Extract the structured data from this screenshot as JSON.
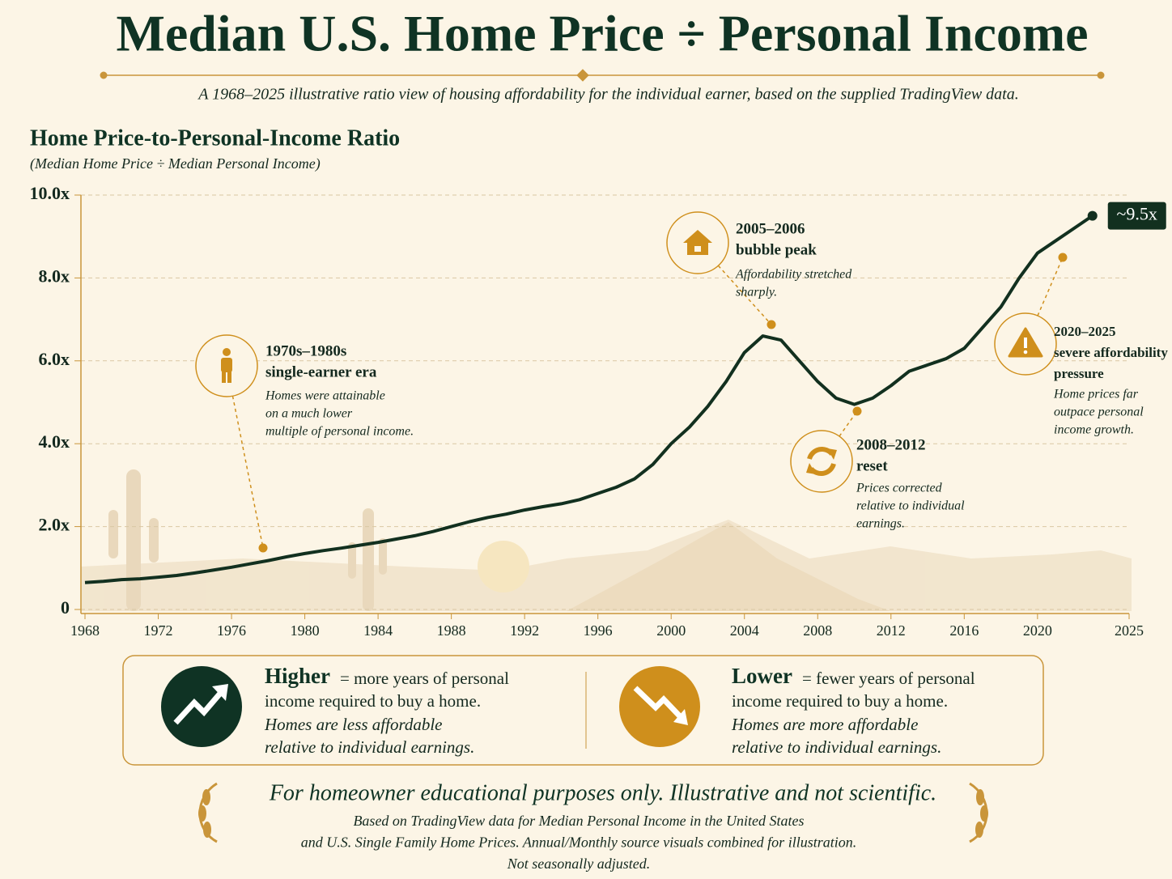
{
  "header": {
    "title": "Median U.S. Home Price ÷ Personal Income",
    "subtitle": "A 1968–2025 illustrative ratio view of  housing affordability for the individual earner, based on the supplied TradingView data."
  },
  "chart_data": {
    "type": "line",
    "title": "Home Price-to-Personal-Income Ratio",
    "subtitle": "(Median Home Price ÷ Median Personal Income)",
    "x": [
      1968,
      1969,
      1970,
      1971,
      1972,
      1973,
      1974,
      1975,
      1976,
      1977,
      1978,
      1979,
      1980,
      1981,
      1982,
      1983,
      1984,
      1985,
      1986,
      1987,
      1988,
      1989,
      1990,
      1991,
      1992,
      1993,
      1994,
      1995,
      1996,
      1997,
      1998,
      1999,
      2000,
      2001,
      2002,
      2003,
      2004,
      2005,
      2006,
      2007,
      2008,
      2009,
      2010,
      2011,
      2012,
      2013,
      2014,
      2015,
      2016,
      2017,
      2018,
      2019,
      2020,
      2021,
      2022,
      2023
    ],
    "values": [
      0.65,
      0.68,
      0.72,
      0.74,
      0.78,
      0.82,
      0.88,
      0.95,
      1.02,
      1.1,
      1.18,
      1.27,
      1.35,
      1.42,
      1.48,
      1.55,
      1.62,
      1.7,
      1.78,
      1.88,
      2.0,
      2.12,
      2.22,
      2.3,
      2.4,
      2.48,
      2.55,
      2.65,
      2.8,
      2.95,
      3.15,
      3.5,
      4.0,
      4.4,
      4.9,
      5.5,
      6.2,
      6.6,
      6.5,
      6.0,
      5.5,
      5.1,
      4.95,
      5.1,
      5.4,
      5.75,
      5.9,
      6.05,
      6.3,
      6.8,
      7.3,
      8.0,
      8.6,
      8.9,
      9.2,
      9.5
    ],
    "color": "#12301f",
    "xlim": [
      1968,
      2025
    ],
    "ylim": [
      0,
      10
    ],
    "xticks": [
      1968,
      1972,
      1976,
      1980,
      1984,
      1988,
      1992,
      1996,
      2000,
      2004,
      2008,
      2012,
      2016,
      2020,
      2025
    ],
    "yticks": [
      0,
      {
        "value": 2,
        "label": "2.0x"
      },
      {
        "value": 4,
        "label": "4.0x"
      },
      {
        "value": 6,
        "label": "6.0x"
      },
      {
        "value": 8,
        "label": "8.0x"
      },
      {
        "value": 10,
        "label": "10.0x"
      }
    ],
    "grid": true,
    "end_label": "~9.5x",
    "annotations": [
      {
        "heading": [
          "1970s–1980s",
          "single-earner era"
        ],
        "note": [
          "Homes were attainable",
          "on a much lower",
          "multiple of personal income."
        ]
      },
      {
        "heading": [
          "2005–2006",
          "bubble peak"
        ],
        "note": [
          "Affordability stretched",
          "sharply."
        ]
      },
      {
        "heading": [
          "2008–2012",
          "reset"
        ],
        "note": [
          "Prices corrected",
          "relative to individual",
          "earnings."
        ]
      },
      {
        "heading": [
          "2020–2025",
          "severe affordability",
          "pressure"
        ],
        "note": [
          "Home prices far",
          "outpace personal",
          "income growth."
        ]
      }
    ]
  },
  "legend_box": {
    "items": [
      {
        "term": "Higher",
        "definition": [
          "= more years of personal",
          "income required to buy a home."
        ],
        "note": [
          "Homes are less affordable",
          "relative to individual earnings."
        ]
      },
      {
        "term": "Lower",
        "definition": [
          "= fewer years of personal",
          "income required to buy a home."
        ],
        "note": [
          "Homes are more affordable",
          "relative to individual earnings."
        ]
      }
    ]
  },
  "footer": {
    "disclaimer": "For homeowner educational purposes only. Illustrative and not scientific.",
    "source": [
      "Based on TradingView data for Median Personal Income in the United States",
      "and U.S. Single Family Home Prices. Annual/Monthly source visuals combined for illustration.",
      "Not seasonally adjusted."
    ]
  }
}
